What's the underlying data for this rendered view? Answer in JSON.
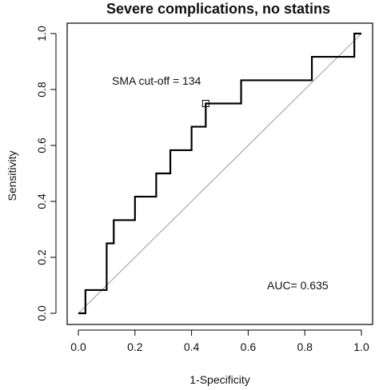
{
  "chart_data": {
    "type": "line",
    "title": "Severe complications, no statins",
    "xlabel": "1-Specificity",
    "ylabel": "Sensitivity",
    "xlim": [
      0.0,
      1.0
    ],
    "ylim": [
      0.0,
      1.0
    ],
    "xticks": [
      "0.0",
      "0.2",
      "0.4",
      "0.6",
      "0.8",
      "1.0"
    ],
    "yticks": [
      "0.0",
      "0.2",
      "0.4",
      "0.6",
      "0.8",
      "1.0"
    ],
    "grid": false,
    "series": [
      {
        "color": "#000000",
        "x": [
          0.0,
          0.025,
          0.025,
          0.1,
          0.1,
          0.125,
          0.125,
          0.2,
          0.2,
          0.275,
          0.275,
          0.325,
          0.325,
          0.4,
          0.4,
          0.45,
          0.45,
          0.575,
          0.575,
          0.825,
          0.825,
          0.975,
          0.975,
          1.0
        ],
        "y": [
          0.0,
          0.0,
          0.083,
          0.083,
          0.25,
          0.25,
          0.333,
          0.333,
          0.417,
          0.417,
          0.5,
          0.5,
          0.583,
          0.583,
          0.667,
          0.667,
          0.75,
          0.75,
          0.833,
          0.833,
          0.917,
          0.917,
          1.0,
          1.0
        ]
      }
    ],
    "reference_line": {
      "x": [
        0.0,
        1.0
      ],
      "y": [
        0.0,
        1.0
      ],
      "color": "#aaaaaa"
    },
    "cutoff_point": {
      "x": 0.45,
      "y": 0.75
    },
    "annotations": {
      "cutoff": "SMA cut-off = 134",
      "auc": "AUC= 0.635"
    }
  }
}
